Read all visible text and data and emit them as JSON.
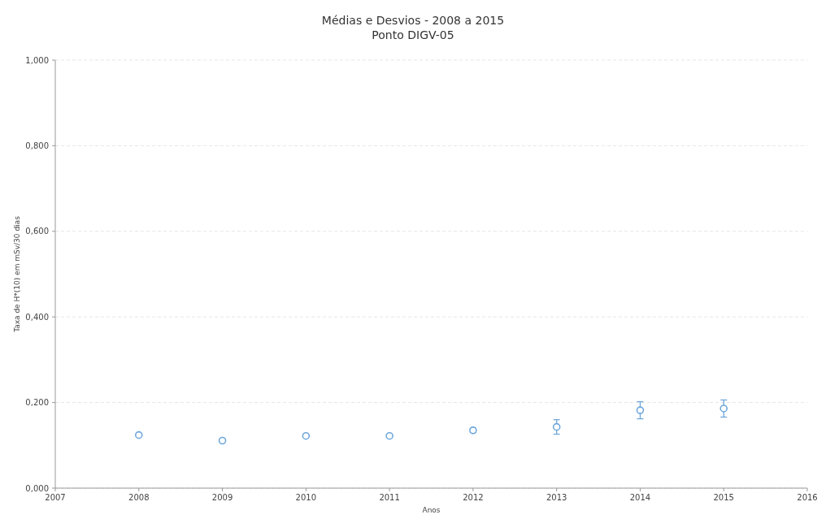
{
  "chart_data": {
    "type": "scatter",
    "title": "Médias e Desvios - 2008 a 2015",
    "subtitle": "Ponto DIGV-05",
    "xlabel": "Anos",
    "ylabel": "Taxa de H*(10) em mSv/30 dias",
    "x": [
      2008,
      2009,
      2010,
      2011,
      2012,
      2013,
      2014,
      2015
    ],
    "series": [
      {
        "color": "#6fa8dc",
        "values": [
          0.124,
          0.111,
          0.122,
          0.122,
          0.135,
          0.143,
          0.182,
          0.186
        ],
        "errors": [
          null,
          null,
          null,
          null,
          0.005,
          0.017,
          0.02,
          0.02
        ]
      }
    ],
    "xlim": [
      2007,
      2016
    ],
    "xticks": [
      2007,
      2008,
      2009,
      2010,
      2011,
      2012,
      2013,
      2014,
      2015,
      2016
    ],
    "ylim": [
      0,
      1
    ],
    "yticks": [
      {
        "value": 0,
        "label": "0,000"
      },
      {
        "value": 0.2,
        "label": "0,200"
      },
      {
        "value": 0.4,
        "label": "0,400"
      },
      {
        "value": 0.6,
        "label": "0,600"
      },
      {
        "value": 0.8,
        "label": "0,800"
      },
      {
        "value": 1,
        "label": "1,000"
      }
    ],
    "grid": "y",
    "marker": "circle"
  }
}
